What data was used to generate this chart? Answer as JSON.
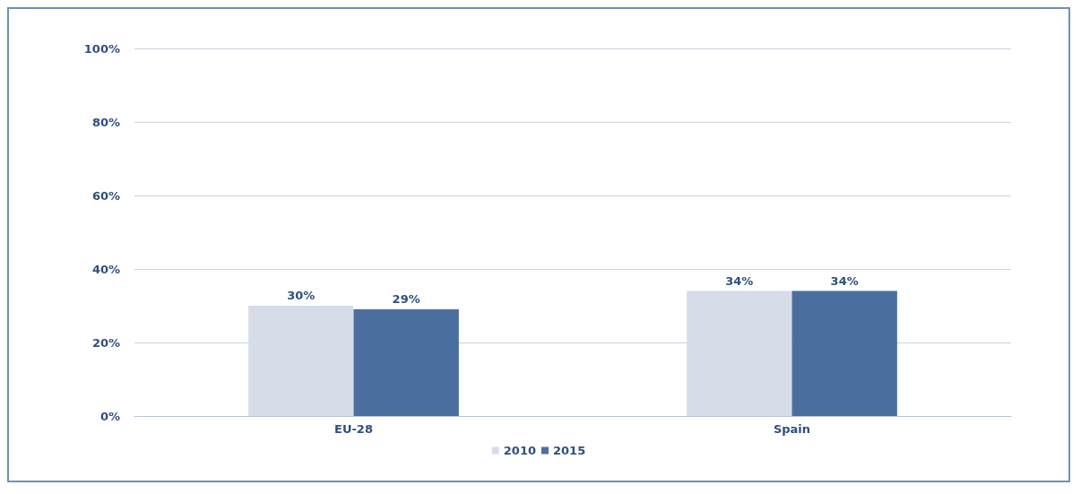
{
  "chart_data": {
    "type": "bar",
    "categories": [
      "EU-28",
      "Spain"
    ],
    "series": [
      {
        "name": "2010",
        "color": "#d6dde8",
        "values": [
          30,
          34
        ],
        "value_labels": [
          "30%",
          "34%"
        ]
      },
      {
        "name": "2015",
        "color": "#4a6f9f",
        "values": [
          29,
          34
        ],
        "value_labels": [
          "29%",
          "34%"
        ]
      }
    ],
    "ylim": [
      0,
      100
    ],
    "yticks": [
      {
        "value": 0,
        "label": "0%"
      },
      {
        "value": 20,
        "label": "20%"
      },
      {
        "value": 40,
        "label": "40%"
      },
      {
        "value": 60,
        "label": "60%"
      },
      {
        "value": 80,
        "label": "80%"
      },
      {
        "value": 100,
        "label": "100%"
      }
    ],
    "grid": "y",
    "legend": "bottom"
  }
}
